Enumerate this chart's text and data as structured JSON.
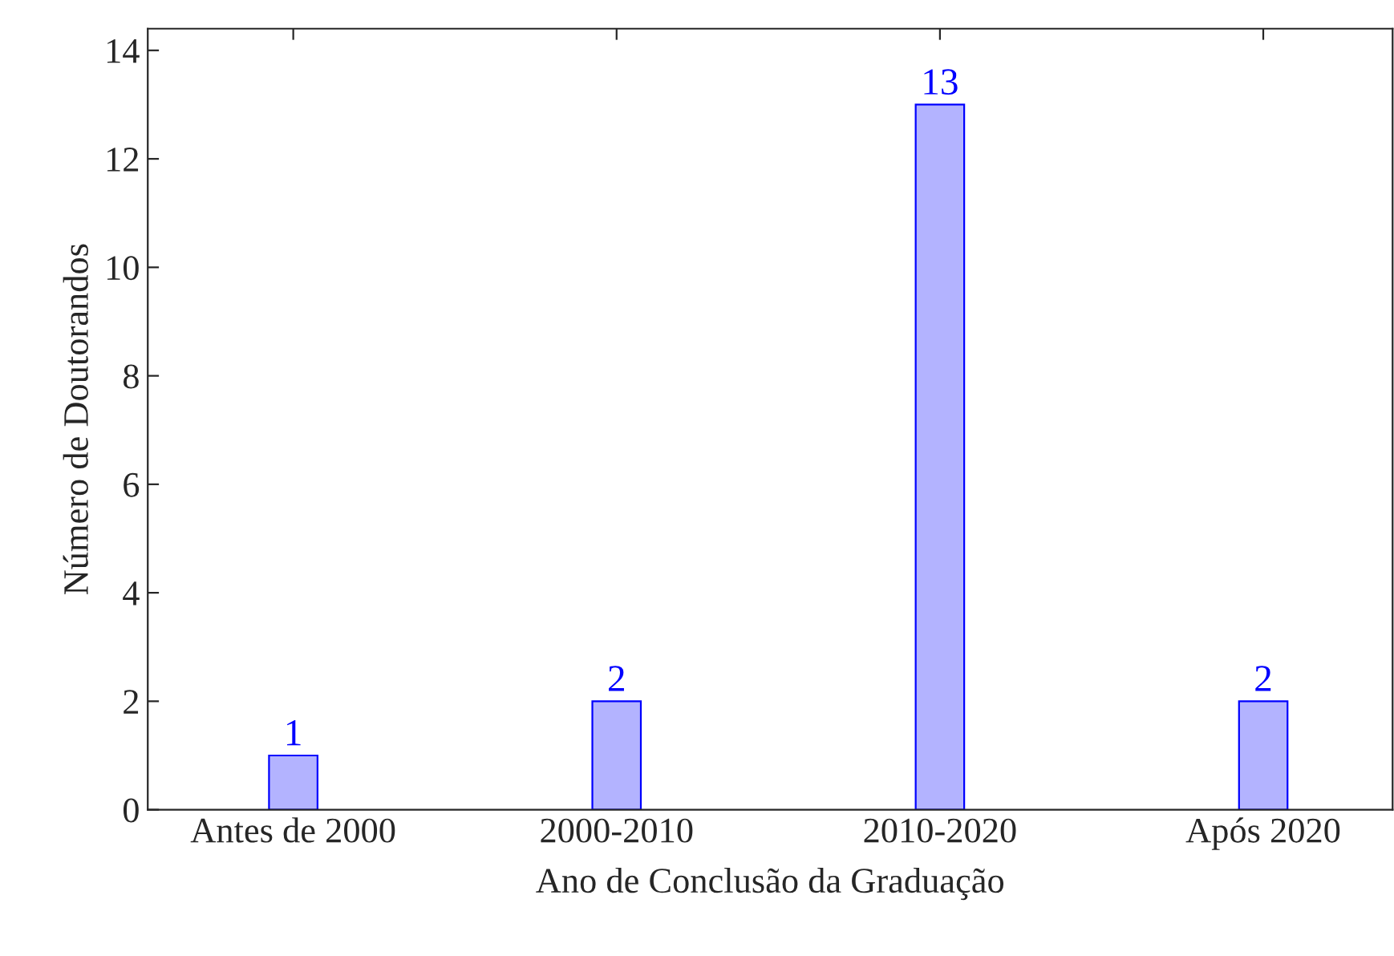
{
  "chart_data": {
    "type": "bar",
    "xlabel": "Ano de Conclusão da Graduação",
    "ylabel": "Número de Doutorandos",
    "categories": [
      "Antes de 2000",
      "2000-2010",
      "2010-2020",
      "Após 2020"
    ],
    "values": [
      1,
      2,
      13,
      2
    ],
    "color": "#b3b3ff",
    "ylim": [
      0,
      14.4
    ],
    "yticks": [
      0,
      2,
      4,
      6,
      8,
      10,
      12,
      14
    ],
    "grid": false,
    "data_labels": true
  }
}
